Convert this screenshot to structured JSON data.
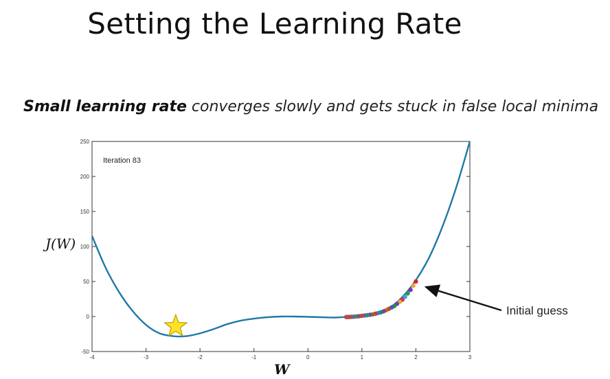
{
  "slide": {
    "title": "Setting the Learning Rate",
    "subtitle_bold": "Small learning rate",
    "subtitle_rest": " converges slowly and gets stuck in false local minima"
  },
  "chart_data": {
    "type": "line",
    "title": "",
    "xlabel": "W",
    "ylabel": "J(W)",
    "xlim": [
      -4,
      3
    ],
    "ylim": [
      -50,
      250
    ],
    "x_ticks": [
      "-4",
      "-3",
      "-2",
      "-1",
      "0",
      "1",
      "2",
      "3"
    ],
    "y_ticks": [
      "-50",
      "0",
      "50",
      "100",
      "150",
      "200",
      "250"
    ],
    "grid": false,
    "series": [
      {
        "x": [
          -4.0,
          -3.75,
          -3.5,
          -3.25,
          -3.0,
          -2.75,
          -2.5,
          -2.25,
          -2.0,
          -1.75,
          -1.5,
          -1.25,
          -1.0,
          -0.75,
          -0.5,
          -0.25,
          0.0,
          0.25,
          0.5,
          0.75,
          1.0,
          1.25,
          1.5,
          1.75,
          2.0,
          2.25,
          2.5,
          2.75,
          3.0
        ],
        "y": [
          115,
          70,
          35,
          8,
          -12,
          -24,
          -28,
          -28,
          -24,
          -18,
          -11,
          -6,
          -3,
          -1,
          0,
          0,
          -0.5,
          -1,
          -1.5,
          -0.5,
          1,
          5,
          12,
          28,
          52,
          85,
          130,
          185,
          250
        ]
      }
    ],
    "gradient_steps": {
      "x": [
        2.0,
        1.95,
        1.9,
        1.85,
        1.8,
        1.75,
        1.7,
        1.65,
        1.6,
        1.55,
        1.5,
        1.45,
        1.4,
        1.35,
        1.3,
        1.25,
        1.2,
        1.15,
        1.1,
        1.05,
        1.0,
        0.96,
        0.92,
        0.88,
        0.84,
        0.8,
        0.77,
        0.74,
        0.72,
        0.71
      ],
      "y": [
        50,
        44,
        38,
        33,
        28,
        24,
        21,
        18,
        15,
        13,
        11,
        9,
        7.5,
        6,
        5,
        4,
        3,
        2.5,
        2,
        1.5,
        1,
        0.6,
        0.3,
        0,
        -0.3,
        -0.5,
        -0.6,
        -0.7,
        -0.7,
        -0.7
      ],
      "colors": [
        "#d62728",
        "#e8a33a",
        "#7b2fbe",
        "#1f9e3a",
        "#3aa7d6",
        "#d6335b",
        "#e3b11c",
        "#6a3fc8",
        "#2c8f3a",
        "#2a5bd7",
        "#d1402a",
        "#b56b1f",
        "#7c3aa8",
        "#1c8a6c",
        "#2f7fd1",
        "#c63b3b",
        "#9a6a24",
        "#6b4aa3",
        "#3f8c4a",
        "#3f6bc2",
        "#c4473b",
        "#9b5f2f",
        "#7a4b9a",
        "#4e8c54",
        "#4c6db8",
        "#b84a3e",
        "#9a5f3d",
        "#7a5391",
        "#cc4c3c",
        "#b8503c"
      ]
    },
    "annotations": {
      "iteration": "Iteration 83",
      "initial_guess": "Initial guess"
    },
    "star": {
      "x": -2.45,
      "y": -14
    }
  }
}
